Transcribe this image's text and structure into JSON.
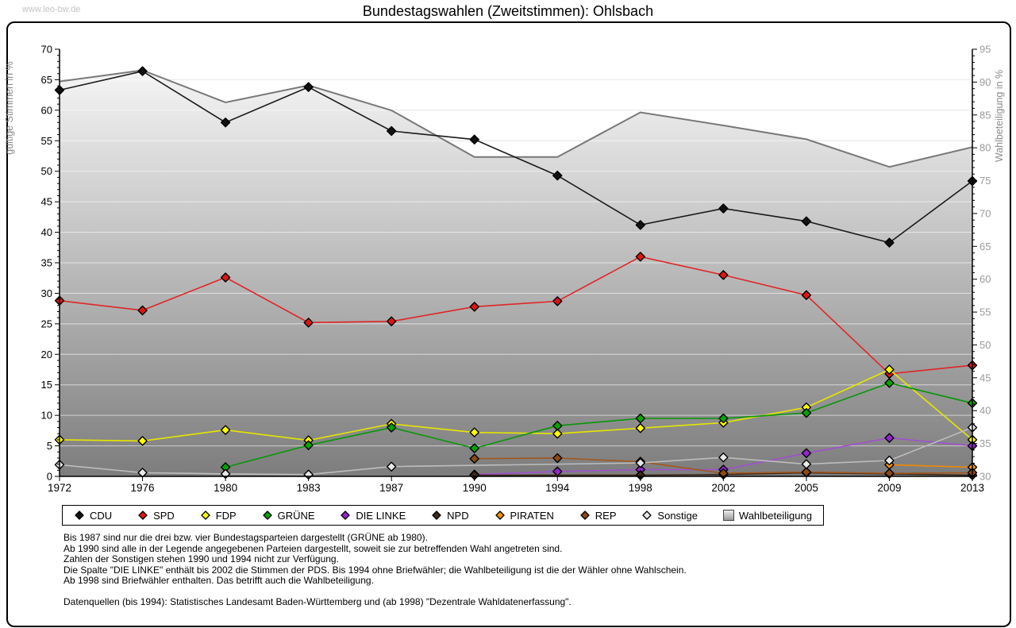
{
  "watermark": "www.leo-bw.de",
  "title": "Bundestagswahlen (Zweitstimmen): Ohlsbach",
  "chart_data": {
    "type": "line",
    "title": "Bundestagswahlen (Zweitstimmen): Ohlsbach",
    "x_categories": [
      "1972",
      "1976",
      "1980",
      "1983",
      "1987",
      "1990",
      "1994",
      "1998",
      "2002",
      "2005",
      "2009",
      "2013"
    ],
    "left_axis": {
      "label": "gültige Stimmen in %",
      "min": 0,
      "max": 70,
      "tick_step": 5
    },
    "right_axis": {
      "label": "Wahlbeteiligung in %",
      "min": 30,
      "max": 95,
      "tick_step": 5
    },
    "grid": true,
    "legend_position": "bottom",
    "series": [
      {
        "name": "CDU",
        "axis": "left",
        "line_color": "#1a1a1a",
        "marker_color": "#111111",
        "values": [
          63.3,
          66.4,
          58.0,
          63.8,
          56.6,
          55.2,
          49.3,
          41.2,
          43.9,
          41.8,
          38.3,
          48.4
        ]
      },
      {
        "name": "SPD",
        "axis": "left",
        "line_color": "#e02525",
        "marker_color": "#dd1515",
        "values": [
          28.8,
          27.2,
          32.6,
          25.2,
          25.4,
          27.8,
          28.7,
          36.0,
          33.0,
          29.7,
          16.8,
          18.2
        ]
      },
      {
        "name": "FDP",
        "axis": "left",
        "line_color": "#e6e600",
        "marker_color": "#ffff00",
        "values": [
          6.0,
          5.8,
          7.6,
          5.9,
          8.6,
          7.2,
          7.0,
          7.9,
          8.8,
          11.3,
          17.5,
          6.0
        ]
      },
      {
        "name": "GRÜNE",
        "axis": "left",
        "line_color": "#079607",
        "marker_color": "#00a400",
        "values": [
          null,
          null,
          1.5,
          5.1,
          8.0,
          4.6,
          8.3,
          9.5,
          9.5,
          10.4,
          15.3,
          12.0
        ]
      },
      {
        "name": "DIE LINKE",
        "axis": "left",
        "line_color": "#a04fd0",
        "marker_color": "#9326cc",
        "values": [
          null,
          null,
          null,
          null,
          null,
          0.3,
          0.8,
          1.1,
          1.1,
          3.8,
          6.3,
          5.0
        ]
      },
      {
        "name": "NPD",
        "axis": "left",
        "line_color": "#3a2717",
        "marker_color": "#3f2a1a",
        "values": [
          null,
          null,
          null,
          null,
          null,
          0.2,
          null,
          0.2,
          0.3,
          0.6,
          0.4,
          0.2
        ]
      },
      {
        "name": "PIRATEN",
        "axis": "left",
        "line_color": "#f28a00",
        "marker_color": "#f59300",
        "values": [
          null,
          null,
          null,
          null,
          null,
          null,
          null,
          null,
          null,
          null,
          1.9,
          1.5
        ]
      },
      {
        "name": "REP",
        "axis": "left",
        "line_color": "#a2571d",
        "marker_color": "#8c4a12",
        "values": [
          null,
          null,
          null,
          null,
          null,
          2.9,
          3.0,
          2.4,
          0.5,
          0.7,
          0.5,
          0.6
        ]
      },
      {
        "name": "Sonstige",
        "axis": "left",
        "line_color": "#bdbdbd",
        "marker_color": "#e8e8e8",
        "values": [
          1.9,
          0.6,
          0.4,
          0.3,
          1.6,
          null,
          null,
          2.2,
          3.1,
          2.0,
          2.6,
          8.0
        ]
      },
      {
        "name": "Wahlbeteiligung",
        "axis": "right",
        "type": "area",
        "line_color": "#787878",
        "area_top_color": "#fbfbfb",
        "area_bottom_color": "#7d7d7d",
        "values": [
          90.1,
          91.8,
          86.9,
          89.5,
          85.7,
          78.6,
          78.6,
          85.4,
          83.4,
          81.3,
          77.1,
          80.1
        ]
      }
    ]
  },
  "footnotes": {
    "lines": [
      "Bis 1987 sind nur die drei bzw. vier Bundestagsparteien dargestellt (GRÜNE ab 1980).",
      "Ab 1990 sind alle in der Legende angegebenen Parteien dargestellt, soweit sie zur betreffenden Wahl angetreten sind.",
      "Zahlen der Sonstigen stehen 1990 und 1994 nicht zur Verfügung.",
      "Die Spalte \"DIE LINKE\" enthält bis 2002 die Stimmen der PDS. Bis 1994 ohne Briefwähler; die Wahlbeteiligung ist die der Wähler ohne Wahlschein.",
      "Ab 1998 sind Briefwähler enthalten. Das betrifft auch die Wahlbeteiligung."
    ],
    "source": "Datenquellen (bis 1994): Statistisches Landesamt Baden-Württemberg und (ab 1998) \"Dezentrale Wahldatenerfassung\"."
  }
}
